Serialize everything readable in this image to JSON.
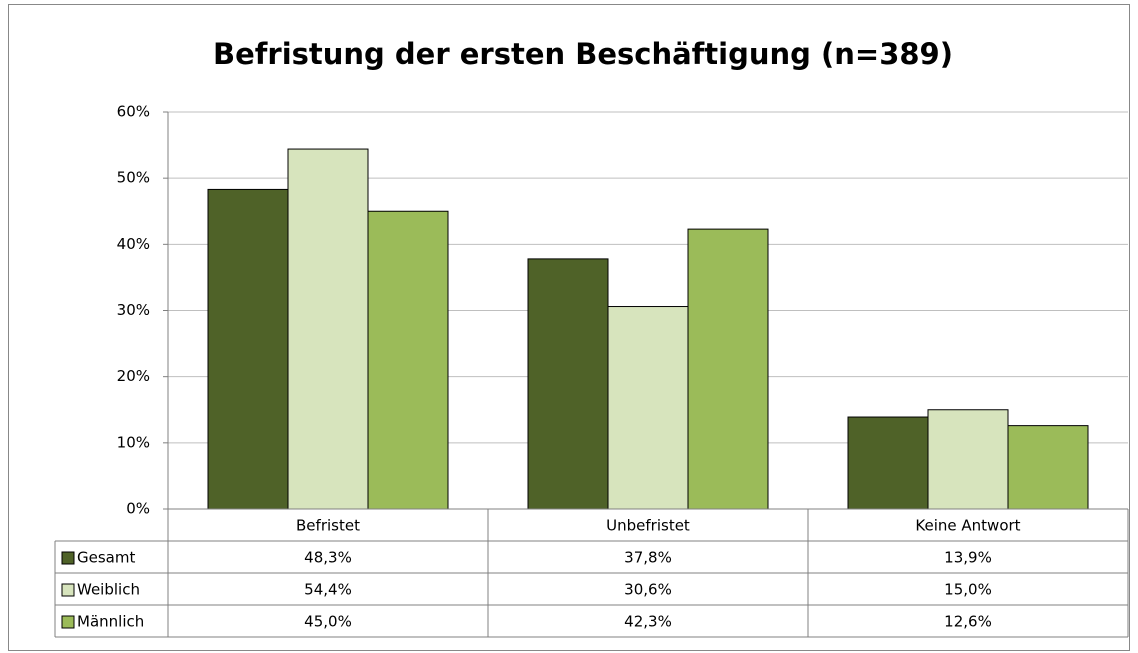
{
  "chart_data": {
    "type": "bar",
    "title": "Befristung der ersten Beschäftigung (n=389)",
    "categories": [
      "Befristet",
      "Unbefristet",
      "Keine Antwort"
    ],
    "series": [
      {
        "name": "Gesamt",
        "color": "#4f6228",
        "values": [
          48.3,
          37.8,
          13.9
        ],
        "value_labels": [
          "48,3%",
          "37,8%",
          "13,9%"
        ]
      },
      {
        "name": "Weiblich",
        "color": "#d7e4bd",
        "values": [
          54.4,
          30.6,
          15.0
        ],
        "value_labels": [
          "54,4%",
          "30,6%",
          "15,0%"
        ]
      },
      {
        "name": "Männlich",
        "color": "#9bbb59",
        "values": [
          45.0,
          42.3,
          12.6
        ],
        "value_labels": [
          "45,0%",
          "42,3%",
          "12,6%"
        ]
      }
    ],
    "ylim": [
      0,
      60
    ],
    "yticks": [
      {
        "value": 0,
        "label": "0%"
      },
      {
        "value": 10,
        "label": "10%"
      },
      {
        "value": 20,
        "label": "20%"
      },
      {
        "value": 30,
        "label": "30%"
      },
      {
        "value": 40,
        "label": "40%"
      },
      {
        "value": 50,
        "label": "50%"
      },
      {
        "value": 60,
        "label": "60%"
      }
    ],
    "grid": true
  }
}
